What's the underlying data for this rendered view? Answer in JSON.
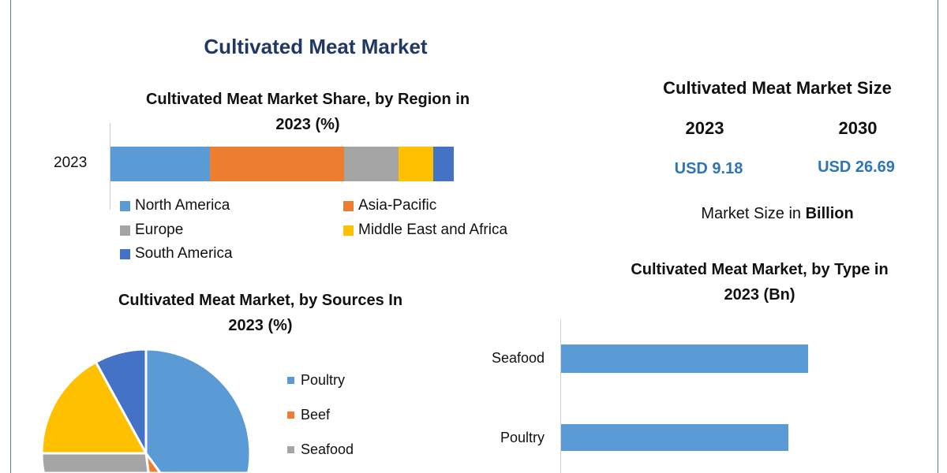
{
  "title": "Cultivated Meat Market",
  "colors": {
    "title": "#1f3864",
    "blue": "#5b9bd5",
    "orange": "#ed7d31",
    "gray": "#a5a5a5",
    "yellow": "#ffc000",
    "dark_blue": "#4472c4",
    "usd": "#2e75b6"
  },
  "market_size": {
    "title": "Cultivated Meat Market Size",
    "years": [
      {
        "year": "2023",
        "value": "USD 9.18"
      },
      {
        "year": "2030",
        "value": "USD 26.69"
      }
    ],
    "note_prefix": "Market Size in ",
    "note_bold": "Billion"
  },
  "chart_data": [
    {
      "type": "bar",
      "orientation": "horizontal-stacked",
      "title_line1": "Cultivated Meat Market Share, by Region in",
      "title_line2": "2023 (%)",
      "categories": [
        "2023"
      ],
      "series": [
        {
          "name": "North America",
          "values": [
            29
          ],
          "color": "#5b9bd5"
        },
        {
          "name": "Asia-Pacific",
          "values": [
            39
          ],
          "color": "#ed7d31"
        },
        {
          "name": "Europe",
          "values": [
            16
          ],
          "color": "#a5a5a5"
        },
        {
          "name": "Middle East and Africa",
          "values": [
            10
          ],
          "color": "#ffc000"
        },
        {
          "name": "South America",
          "values": [
            6
          ],
          "color": "#4472c4"
        }
      ],
      "legend": "bottom"
    },
    {
      "type": "pie",
      "title_line1": "Cultivated Meat Market, by Sources In",
      "title_line2": "2023 (%)",
      "slices": [
        {
          "name": "Poultry",
          "value": 40,
          "color": "#5b9bd5"
        },
        {
          "name": "Beef",
          "value": 8,
          "color": "#ed7d31"
        },
        {
          "name": "Seafood",
          "value": 27,
          "color": "#a5a5a5"
        },
        {
          "value": 17,
          "color": "#ffc000"
        },
        {
          "value": 8,
          "color": "#4472c4"
        }
      ],
      "legend": "right"
    },
    {
      "type": "bar",
      "orientation": "horizontal",
      "title_line1": "Cultivated Meat Market, by Type in",
      "title_line2": "2023 (Bn)",
      "categories": [
        "Seafood",
        "Poultry"
      ],
      "values_relative": [
        1.0,
        0.92
      ],
      "color": "#5b9bd5"
    }
  ]
}
